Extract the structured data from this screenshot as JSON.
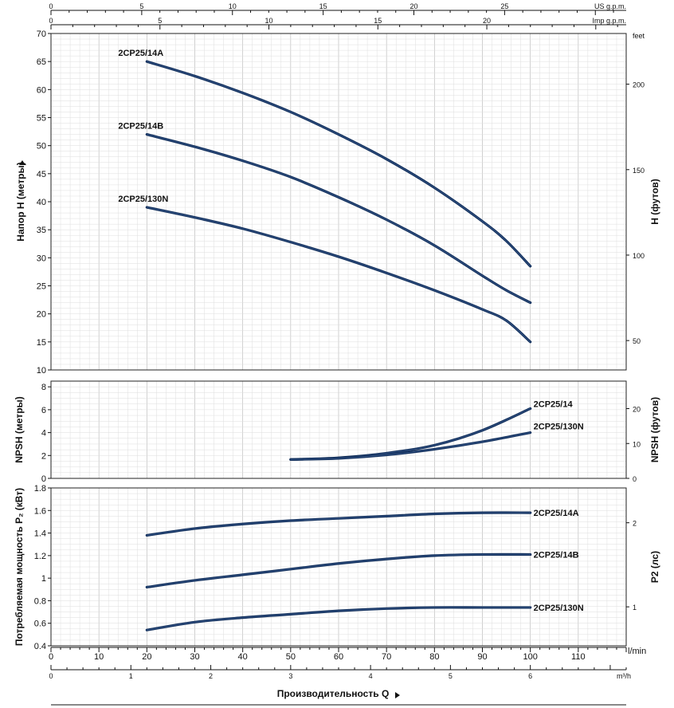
{
  "chart_data": [
    {
      "type": "line",
      "panel": "head",
      "ylabel": "Напор H (метры)",
      "ylabel_right": "H (футов)",
      "ylim": [
        10,
        70
      ],
      "yticks": [
        10,
        15,
        20,
        25,
        30,
        35,
        40,
        45,
        50,
        55,
        60,
        65,
        70
      ],
      "right_unit": "feet",
      "right_ticks": [
        50,
        100,
        150,
        200
      ],
      "xlim_lmin": [
        0,
        120
      ],
      "series": [
        {
          "name": "2CP25/14A",
          "x": [
            20,
            30,
            40,
            50,
            60,
            70,
            80,
            90,
            95,
            100
          ],
          "y": [
            65,
            62.4,
            59.4,
            56,
            52,
            47.6,
            42.5,
            36.5,
            33,
            28.5
          ]
        },
        {
          "name": "2CP25/14B",
          "x": [
            20,
            30,
            40,
            50,
            60,
            70,
            80,
            90,
            95,
            100
          ],
          "y": [
            52,
            49.8,
            47.3,
            44.4,
            40.8,
            36.8,
            32.2,
            26.8,
            24.2,
            22
          ]
        },
        {
          "name": "2CP25/130N",
          "x": [
            20,
            30,
            40,
            50,
            60,
            70,
            80,
            90,
            95,
            100
          ],
          "y": [
            39,
            37.2,
            35.2,
            32.8,
            30.2,
            27.3,
            24.2,
            20.8,
            18.8,
            15
          ]
        }
      ]
    },
    {
      "type": "line",
      "panel": "npsh",
      "ylabel": "NPSH (метры)",
      "ylabel_right": "NPSH (футов)",
      "ylim": [
        0,
        8.5
      ],
      "yticks": [
        0,
        2,
        4,
        6,
        8
      ],
      "right_ticks": [
        0,
        10,
        20
      ],
      "series": [
        {
          "name": "2CP25/14",
          "x": [
            50,
            60,
            70,
            80,
            90,
            100
          ],
          "y": [
            1.65,
            1.8,
            2.2,
            2.9,
            4.2,
            6.1
          ]
        },
        {
          "name": "2CP25/130N",
          "x": [
            50,
            60,
            70,
            80,
            90,
            100
          ],
          "y": [
            1.65,
            1.75,
            2.05,
            2.55,
            3.2,
            4
          ]
        }
      ]
    },
    {
      "type": "line",
      "panel": "power",
      "ylabel": "Потребляемая мощность P₂ (кВт)",
      "ylabel_right": "P2 (лс)",
      "ylim": [
        0.4,
        1.8
      ],
      "yticks": [
        0.4,
        0.6,
        0.8,
        1,
        1.2,
        1.4,
        1.6,
        1.8
      ],
      "right_ticks": [
        1,
        2
      ],
      "series": [
        {
          "name": "2CP25/14A",
          "x": [
            20,
            30,
            40,
            50,
            60,
            70,
            80,
            90,
            100
          ],
          "y": [
            1.38,
            1.44,
            1.48,
            1.51,
            1.53,
            1.55,
            1.57,
            1.58,
            1.58
          ]
        },
        {
          "name": "2CP25/14B",
          "x": [
            20,
            30,
            40,
            50,
            60,
            70,
            80,
            90,
            100
          ],
          "y": [
            0.92,
            0.98,
            1.03,
            1.08,
            1.13,
            1.17,
            1.2,
            1.21,
            1.21
          ]
        },
        {
          "name": "2CP25/130N",
          "x": [
            20,
            30,
            40,
            50,
            60,
            70,
            80,
            90,
            100
          ],
          "y": [
            0.54,
            0.61,
            0.65,
            0.68,
            0.71,
            0.73,
            0.74,
            0.74,
            0.74
          ]
        }
      ]
    }
  ],
  "x_axes": {
    "lmin": {
      "unit": "l/min",
      "ticks": [
        0,
        10,
        20,
        30,
        40,
        50,
        60,
        70,
        80,
        90,
        100,
        110
      ]
    },
    "m3h": {
      "unit": "m³/h",
      "ticks": [
        0,
        1,
        2,
        3,
        4,
        5,
        6
      ]
    },
    "us_gpm": {
      "unit": "US g.p.m.",
      "ticks": [
        0,
        5,
        10,
        15,
        20,
        25
      ]
    },
    "imp_gpm": {
      "unit": "Imp g.p.m.",
      "ticks": [
        0,
        5,
        10,
        15,
        20
      ]
    }
  },
  "xlabel": "Производительность Q",
  "colors": {
    "curve": "#0f2d5a",
    "curve_highlight": "#5f7fb3",
    "grid": "#bdbdbd"
  }
}
